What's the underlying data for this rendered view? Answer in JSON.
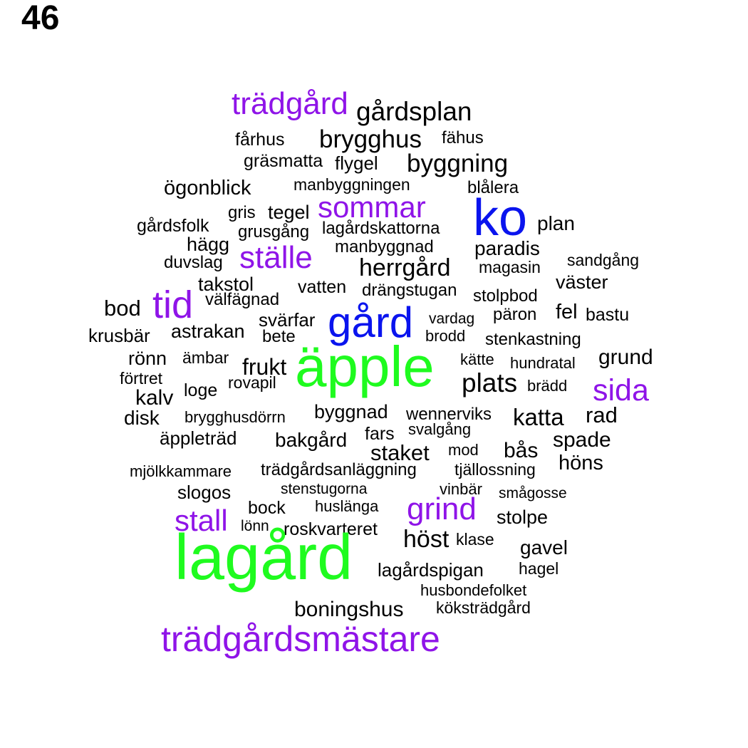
{
  "page_number": "46",
  "colors": {
    "green": "#1ffb1f",
    "blue": "#0a14ee",
    "purple": "#8f14e8",
    "black": "#000000"
  },
  "words": [
    {
      "text": "trädgård",
      "color": "purple"
    },
    {
      "text": "gårdsplan",
      "color": "black"
    },
    {
      "text": "fårhus",
      "color": "black"
    },
    {
      "text": "brygghus",
      "color": "black"
    },
    {
      "text": "fähus",
      "color": "black"
    },
    {
      "text": "gräsmatta",
      "color": "black"
    },
    {
      "text": "flygel",
      "color": "black"
    },
    {
      "text": "byggning",
      "color": "black"
    },
    {
      "text": "ögonblick",
      "color": "black"
    },
    {
      "text": "manbyggningen",
      "color": "black"
    },
    {
      "text": "blålera",
      "color": "black"
    },
    {
      "text": "sommar",
      "color": "purple"
    },
    {
      "text": "ko",
      "color": "blue"
    },
    {
      "text": "gris",
      "color": "black"
    },
    {
      "text": "tegel",
      "color": "black"
    },
    {
      "text": "plan",
      "color": "black"
    },
    {
      "text": "gårdsfolk",
      "color": "black"
    },
    {
      "text": "grusgång",
      "color": "black"
    },
    {
      "text": "lagårdskattorna",
      "color": "black"
    },
    {
      "text": "hägg",
      "color": "black"
    },
    {
      "text": "ställe",
      "color": "purple"
    },
    {
      "text": "manbyggnad",
      "color": "black"
    },
    {
      "text": "paradis",
      "color": "black"
    },
    {
      "text": "duvslag",
      "color": "black"
    },
    {
      "text": "herrgård",
      "color": "black"
    },
    {
      "text": "magasin",
      "color": "black"
    },
    {
      "text": "sandgång",
      "color": "black"
    },
    {
      "text": "takstol",
      "color": "black"
    },
    {
      "text": "vatten",
      "color": "black"
    },
    {
      "text": "drängstugan",
      "color": "black"
    },
    {
      "text": "väster",
      "color": "black"
    },
    {
      "text": "välfägnad",
      "color": "black"
    },
    {
      "text": "stolpbod",
      "color": "black"
    },
    {
      "text": "bod",
      "color": "black"
    },
    {
      "text": "tid",
      "color": "purple"
    },
    {
      "text": "gård",
      "color": "blue"
    },
    {
      "text": "fel",
      "color": "black"
    },
    {
      "text": "svärfar",
      "color": "black"
    },
    {
      "text": "vardag",
      "color": "black"
    },
    {
      "text": "päron",
      "color": "black"
    },
    {
      "text": "bastu",
      "color": "black"
    },
    {
      "text": "krusbär",
      "color": "black"
    },
    {
      "text": "astrakan",
      "color": "black"
    },
    {
      "text": "bete",
      "color": "black"
    },
    {
      "text": "brodd",
      "color": "black"
    },
    {
      "text": "stenkastning",
      "color": "black"
    },
    {
      "text": "rönn",
      "color": "black"
    },
    {
      "text": "ämbar",
      "color": "black"
    },
    {
      "text": "äpple",
      "color": "green"
    },
    {
      "text": "kätte",
      "color": "black"
    },
    {
      "text": "hundratal",
      "color": "black"
    },
    {
      "text": "grund",
      "color": "black"
    },
    {
      "text": "frukt",
      "color": "black"
    },
    {
      "text": "förtret",
      "color": "black"
    },
    {
      "text": "plats",
      "color": "black"
    },
    {
      "text": "sida",
      "color": "purple"
    },
    {
      "text": "loge",
      "color": "black"
    },
    {
      "text": "rovapil",
      "color": "black"
    },
    {
      "text": "brädd",
      "color": "black"
    },
    {
      "text": "kalv",
      "color": "black"
    },
    {
      "text": "disk",
      "color": "black"
    },
    {
      "text": "brygghusdörrn",
      "color": "black"
    },
    {
      "text": "byggnad",
      "color": "black"
    },
    {
      "text": "wennerviks",
      "color": "black"
    },
    {
      "text": "katta",
      "color": "black"
    },
    {
      "text": "rad",
      "color": "black"
    },
    {
      "text": "äppleträd",
      "color": "black"
    },
    {
      "text": "bakgård",
      "color": "black"
    },
    {
      "text": "fars",
      "color": "black"
    },
    {
      "text": "svalgång",
      "color": "black"
    },
    {
      "text": "spade",
      "color": "black"
    },
    {
      "text": "staket",
      "color": "black"
    },
    {
      "text": "mod",
      "color": "black"
    },
    {
      "text": "bås",
      "color": "black"
    },
    {
      "text": "höns",
      "color": "black"
    },
    {
      "text": "mjölkkammare",
      "color": "black"
    },
    {
      "text": "trädgårdsanläggning",
      "color": "black"
    },
    {
      "text": "tjällossning",
      "color": "black"
    },
    {
      "text": "slogos",
      "color": "black"
    },
    {
      "text": "stenstugorna",
      "color": "black"
    },
    {
      "text": "vinbär",
      "color": "black"
    },
    {
      "text": "smågosse",
      "color": "black"
    },
    {
      "text": "bock",
      "color": "black"
    },
    {
      "text": "huslänga",
      "color": "black"
    },
    {
      "text": "grind",
      "color": "purple"
    },
    {
      "text": "stall",
      "color": "purple"
    },
    {
      "text": "stolpe",
      "color": "black"
    },
    {
      "text": "lönn",
      "color": "black"
    },
    {
      "text": "roskvarteret",
      "color": "black"
    },
    {
      "text": "höst",
      "color": "black"
    },
    {
      "text": "klase",
      "color": "black"
    },
    {
      "text": "gavel",
      "color": "black"
    },
    {
      "text": "lagård",
      "color": "green"
    },
    {
      "text": "lagårdspigan",
      "color": "black"
    },
    {
      "text": "hagel",
      "color": "black"
    },
    {
      "text": "husbondefolket",
      "color": "black"
    },
    {
      "text": "boningshus",
      "color": "black"
    },
    {
      "text": "köksträdgård",
      "color": "black"
    },
    {
      "text": "trädgårdsmästare",
      "color": "purple"
    }
  ]
}
